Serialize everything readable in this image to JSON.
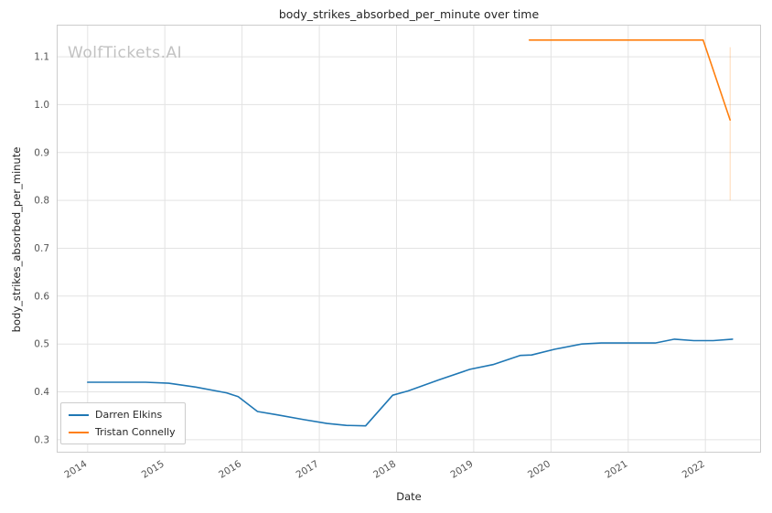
{
  "chart": {
    "title": "body_strikes_absorbed_per_minute over time",
    "xlabel": "Date",
    "ylabel": "body_strikes_absorbed_per_minute",
    "watermark": "WolfTickets.AI"
  },
  "chart_data": {
    "type": "line",
    "title": "body_strikes_absorbed_per_minute over time",
    "xlabel": "Date",
    "ylabel": "body_strikes_absorbed_per_minute",
    "grid": true,
    "legend_position": "lower left",
    "x_range": [
      2013.6,
      2022.72
    ],
    "y_range": [
      0.273,
      1.167
    ],
    "x_ticks": [
      2014,
      2015,
      2016,
      2017,
      2018,
      2019,
      2020,
      2021,
      2022
    ],
    "x_tick_labels": [
      "2014",
      "2015",
      "2016",
      "2017",
      "2018",
      "2019",
      "2020",
      "2021",
      "2022"
    ],
    "y_ticks": [
      0.3,
      0.4,
      0.5,
      0.6,
      0.7,
      0.8,
      0.9,
      1.0,
      1.1
    ],
    "y_tick_labels": [
      "0.3",
      "0.4",
      "0.5",
      "0.6",
      "0.7",
      "0.8",
      "0.9",
      "1.0",
      "1.1"
    ],
    "series": [
      {
        "name": "Darren Elkins",
        "color": "#1f77b4",
        "points": [
          [
            2014.0,
            0.42
          ],
          [
            2014.75,
            0.42
          ],
          [
            2015.05,
            0.418
          ],
          [
            2015.4,
            0.41
          ],
          [
            2015.8,
            0.398
          ],
          [
            2015.95,
            0.39
          ],
          [
            2016.2,
            0.359
          ],
          [
            2016.45,
            0.352
          ],
          [
            2016.8,
            0.342
          ],
          [
            2017.1,
            0.334
          ],
          [
            2017.35,
            0.33
          ],
          [
            2017.6,
            0.329
          ],
          [
            2017.95,
            0.393
          ],
          [
            2018.15,
            0.402
          ],
          [
            2018.55,
            0.425
          ],
          [
            2018.95,
            0.447
          ],
          [
            2019.25,
            0.457
          ],
          [
            2019.6,
            0.476
          ],
          [
            2019.75,
            0.477
          ],
          [
            2020.05,
            0.489
          ],
          [
            2020.4,
            0.5
          ],
          [
            2020.65,
            0.502
          ],
          [
            2021.05,
            0.502
          ],
          [
            2021.35,
            0.502
          ],
          [
            2021.6,
            0.51
          ],
          [
            2021.85,
            0.507
          ],
          [
            2022.1,
            0.507
          ],
          [
            2022.35,
            0.51
          ]
        ]
      },
      {
        "name": "Tristan Connelly",
        "color": "#ff7f0e",
        "points": [
          [
            2019.72,
            1.135
          ],
          [
            2021.97,
            1.135
          ],
          [
            2022.32,
            0.968
          ]
        ]
      }
    ],
    "error_bar": {
      "x": 2022.32,
      "y_min": 0.8,
      "y_max": 1.12,
      "color": "#ff7f0e",
      "opacity": 0.3
    }
  }
}
